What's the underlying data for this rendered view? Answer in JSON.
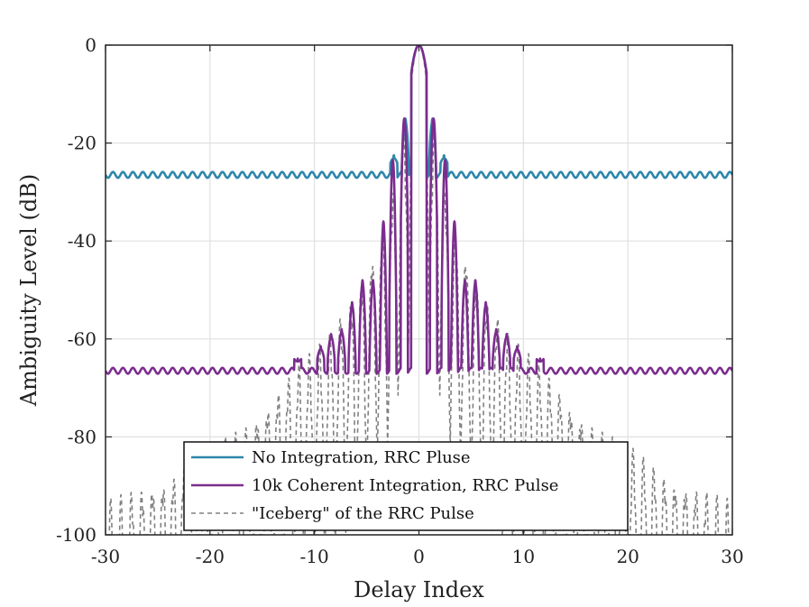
{
  "chart_data": {
    "type": "line",
    "title": "",
    "xlabel": "Delay Index",
    "ylabel": "Ambiguity Level (dB)",
    "xlim": [
      -30,
      30
    ],
    "ylim": [
      -100,
      0
    ],
    "xticks": [
      -30,
      -20,
      -10,
      0,
      10,
      20,
      30
    ],
    "xtick_labels": [
      "-30",
      "-20",
      "-10",
      "0",
      "10",
      "20",
      "30"
    ],
    "yticks": [
      0,
      -20,
      -40,
      -60,
      -80,
      -100
    ],
    "ytick_labels": [
      "0",
      "-20",
      "-40",
      "-60",
      "-80",
      "-100"
    ],
    "grid": true,
    "legend_position": "bottom-center",
    "series": [
      {
        "name": "No Integration, RRC Pluse",
        "color": "#2e86ab",
        "style": "solid",
        "floor": -26.5,
        "floor_ripple": 0.6,
        "peaks": [
          {
            "x": 0,
            "y": 0
          },
          {
            "x": -1.3,
            "y": -15
          },
          {
            "x": 1.3,
            "y": -15
          },
          {
            "x": -2.4,
            "y": -22.5
          },
          {
            "x": 2.4,
            "y": -22.5
          }
        ]
      },
      {
        "name": "10k Coherent Integration, RRC Pulse",
        "color": "#7b2d8e",
        "style": "solid",
        "floor": -66.5,
        "floor_ripple": 0.6,
        "peaks": [
          {
            "x": 0,
            "y": 0
          },
          {
            "x": -1.4,
            "y": -15
          },
          {
            "x": 1.4,
            "y": -15
          },
          {
            "x": -2.5,
            "y": -23.5
          },
          {
            "x": 2.5,
            "y": -23.5
          },
          {
            "x": -3.4,
            "y": -36
          },
          {
            "x": 3.4,
            "y": -36
          },
          {
            "x": -4.4,
            "y": -48
          },
          {
            "x": 4.4,
            "y": -48
          },
          {
            "x": -5.4,
            "y": -48
          },
          {
            "x": 5.4,
            "y": -48
          },
          {
            "x": -6.4,
            "y": -52.5
          },
          {
            "x": 6.4,
            "y": -52.5
          },
          {
            "x": -7.4,
            "y": -58
          },
          {
            "x": 7.4,
            "y": -58
          },
          {
            "x": -8.4,
            "y": -59
          },
          {
            "x": 8.4,
            "y": -59
          },
          {
            "x": -9.4,
            "y": -61.5
          },
          {
            "x": 9.4,
            "y": -61.5
          },
          {
            "x": -11.6,
            "y": -64
          },
          {
            "x": 11.6,
            "y": -64
          }
        ]
      },
      {
        "name": "\"Iceberg\" of the RRC Pulse",
        "color": "#808080",
        "style": "dashed",
        "envelope": [
          {
            "x": 0,
            "y": 0
          },
          {
            "x": 3,
            "y": -36
          },
          {
            "x": 6,
            "y": -50
          },
          {
            "x": 9,
            "y": -60
          },
          {
            "x": 12,
            "y": -66
          },
          {
            "x": 15,
            "y": -74
          },
          {
            "x": 18,
            "y": -79
          },
          {
            "x": 21,
            "y": -83
          },
          {
            "x": 24,
            "y": -88
          },
          {
            "x": 27,
            "y": -90
          },
          {
            "x": 30,
            "y": -93
          }
        ]
      }
    ]
  }
}
